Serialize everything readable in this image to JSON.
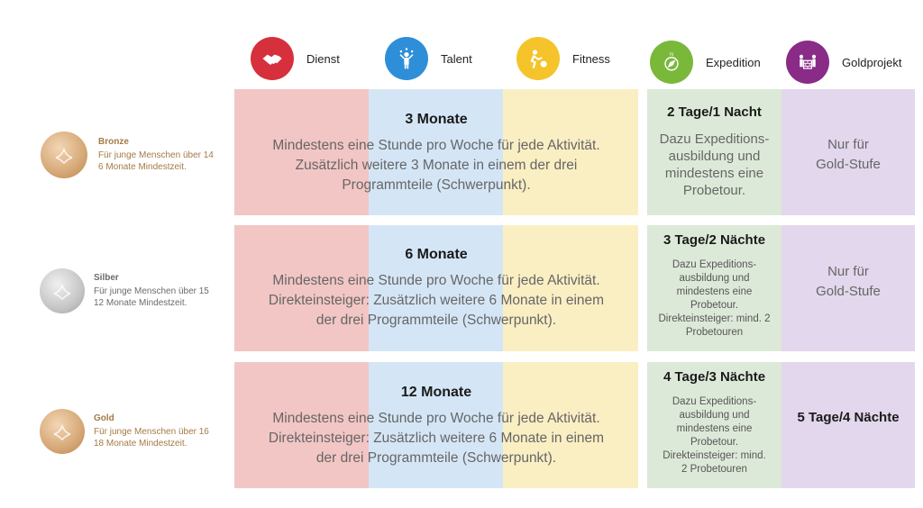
{
  "columns": [
    {
      "label": "Dienst",
      "color": "#d6303c",
      "icon": "handshake-icon"
    },
    {
      "label": "Talent",
      "color": "#2f8ed8",
      "icon": "juggler-icon"
    },
    {
      "label": "Fitness",
      "color": "#f5c42a",
      "icon": "running-ball-icon"
    },
    {
      "label": "Expedition",
      "color": "#7ab83a",
      "icon": "compass-icon"
    },
    {
      "label": "Goldprojekt",
      "color": "#8a2b88",
      "icon": "people-wall-icon"
    }
  ],
  "levels": [
    {
      "name": "Bronze",
      "name_color": "#a57a45",
      "desc_color": "#a57a45",
      "medal_color": "#d6a877",
      "line1": "Für junge Menschen über 14",
      "line2": "6 Monate Mindestzeit.",
      "duration": "3 Monate",
      "body": [
        "Mindestens eine Stunde pro Woche für jede Aktivität.",
        "Zusätzlich weitere 3 Monate in einem der drei",
        "Programmteile (Schwerpunkt)."
      ],
      "exp_title": "2 Tage/1 Nacht",
      "exp_body": [
        "Dazu Expeditions-",
        "ausbildung und",
        "mindestens eine",
        "Probetour."
      ],
      "gold": [
        "Nur für",
        "Gold-Stufe"
      ]
    },
    {
      "name": "Silber",
      "name_color": "#6b6b6b",
      "desc_color": "#6b6b6b",
      "medal_color": "#c6c6c6",
      "line1": "Für junge Menschen über 15",
      "line2": "12 Monate Mindestzeit.",
      "duration": "6 Monate",
      "body": [
        "Mindestens eine Stunde pro Woche für jede Aktivität.",
        "Direkteinsteiger: Zusätzlich weitere 6 Monate in einem",
        "der drei Programmteile (Schwerpunkt)."
      ],
      "exp_title": "3 Tage/2 Nächte",
      "exp_body": [
        "Dazu Expeditions-",
        "ausbildung und",
        "mindestens eine",
        "Probetour.",
        "Direkteinsteiger: mind. 2",
        "Probetouren"
      ],
      "gold": [
        "Nur für",
        "Gold-Stufe"
      ]
    },
    {
      "name": "Gold",
      "name_color": "#a57a45",
      "desc_color": "#a57a45",
      "medal_color": "#d6a877",
      "line1": "Für junge Menschen über 16",
      "line2": "18 Monate Mindestzeit.",
      "duration": "12 Monate",
      "body": [
        "Mindestens eine Stunde pro Woche für jede Aktivität.",
        "Direkteinsteiger: Zusätzlich weitere 6 Monate in einem",
        "der drei Programmteile (Schwerpunkt)."
      ],
      "exp_title": "4 Tage/3 Nächte",
      "exp_body": [
        "Dazu Expeditions-",
        "ausbildung und",
        "mindestens eine",
        "Probetour.",
        "Direkteinsteiger: mind.",
        "2 Probetouren"
      ],
      "gold": [
        "5 Tage/4 Nächte"
      ]
    }
  ]
}
